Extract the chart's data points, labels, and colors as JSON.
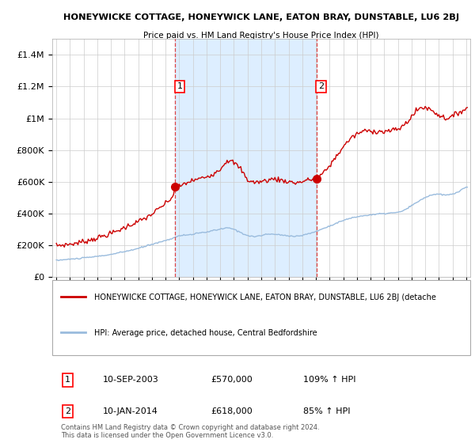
{
  "title": "HONEYWICKE COTTAGE, HONEYWICK LANE, EATON BRAY, DUNSTABLE, LU6 2BJ",
  "subtitle": "Price paid vs. HM Land Registry's House Price Index (HPI)",
  "legend_line1": "HONEYWICKE COTTAGE, HONEYWICK LANE, EATON BRAY, DUNSTABLE, LU6 2BJ (detache",
  "legend_line2": "HPI: Average price, detached house, Central Bedfordshire",
  "sale1_label": "1",
  "sale1_date_str": "10-SEP-2003",
  "sale1_price_str": "£570,000",
  "sale1_hpi_str": "109% ↑ HPI",
  "sale2_label": "2",
  "sale2_date_str": "10-JAN-2014",
  "sale2_price_str": "£618,000",
  "sale2_hpi_str": "85% ↑ HPI",
  "footer": "Contains HM Land Registry data © Crown copyright and database right 2024.\nThis data is licensed under the Open Government Licence v3.0.",
  "red_color": "#cc0000",
  "blue_color": "#99bbdd",
  "shade_color": "#ddeeff",
  "dashed_color": "#dd4444",
  "background_color": "#ffffff",
  "grid_color": "#cccccc",
  "ylim": [
    0,
    1500000
  ],
  "yticks": [
    0,
    200000,
    400000,
    600000,
    800000,
    1000000,
    1200000,
    1400000
  ],
  "ytick_labels": [
    "£0",
    "£200K",
    "£400K",
    "£600K",
    "£800K",
    "£1M",
    "£1.2M",
    "£1.4M"
  ],
  "sale1_x": 2003.69,
  "sale1_y": 570000,
  "sale2_x": 2014.03,
  "sale2_y": 618000,
  "xlim_left": 1994.7,
  "xlim_right": 2025.3
}
